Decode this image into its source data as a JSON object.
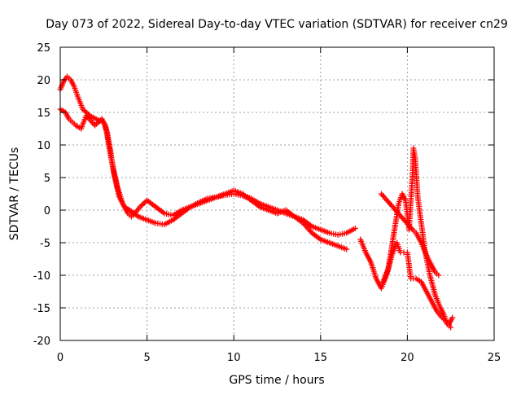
{
  "chart_data": {
    "type": "scatter",
    "title": "Day 073 of 2022, Sidereal Day-to-day VTEC variation (SDTVAR) for receiver cn29",
    "xlabel": "GPS time / hours",
    "ylabel": "SDTVAR / TECUs",
    "xlim": [
      0,
      25
    ],
    "ylim": [
      -20,
      25
    ],
    "xticks": [
      0,
      5,
      10,
      15,
      20,
      25
    ],
    "yticks": [
      -20,
      -15,
      -10,
      -5,
      0,
      5,
      10,
      15,
      20,
      25
    ],
    "grid": true,
    "marker": "+",
    "series": [
      {
        "name": "track-a",
        "color": "#ff0000",
        "x": [
          0.0,
          0.3,
          0.5,
          0.7,
          0.9,
          1.2,
          1.5,
          2.0,
          2.4,
          2.6,
          2.8,
          3.0,
          3.3,
          3.6,
          3.9,
          4.1,
          4.3,
          4.6,
          5.0,
          5.5,
          6.0,
          6.5,
          7.0,
          7.5,
          8.0,
          8.5,
          9.0,
          9.5,
          10.0,
          10.5,
          11.0,
          11.5,
          12.0,
          12.5,
          13.0,
          13.5,
          14.0,
          14.5,
          15.0,
          15.5,
          16.0,
          16.5,
          17.0
        ],
        "y": [
          15.5,
          15.0,
          14.0,
          13.5,
          13.0,
          12.5,
          14.5,
          13.0,
          14.0,
          13.0,
          10.0,
          7.0,
          3.5,
          1.0,
          -0.5,
          -1.0,
          -0.5,
          0.5,
          1.5,
          0.5,
          -0.5,
          -0.8,
          0.0,
          0.5,
          1.2,
          1.8,
          2.0,
          2.3,
          2.5,
          2.2,
          1.8,
          1.0,
          0.5,
          0.0,
          -0.5,
          -1.0,
          -1.5,
          -2.5,
          -3.0,
          -3.5,
          -3.8,
          -3.5,
          -2.8
        ]
      },
      {
        "name": "track-b",
        "color": "#ff0000",
        "x": [
          0.0,
          0.2,
          0.4,
          0.6,
          0.8,
          1.0,
          1.3,
          1.7,
          2.2,
          2.5,
          2.7,
          2.9,
          3.1,
          3.4,
          3.7,
          4.0,
          4.5,
          5.0,
          5.5,
          6.0,
          6.5,
          7.0,
          7.5,
          8.0,
          8.5,
          9.0,
          9.5,
          10.0,
          10.5,
          11.0,
          11.5,
          12.0,
          12.5,
          13.0,
          13.5,
          14.0,
          14.5,
          15.0,
          15.5,
          16.0,
          16.5
        ],
        "y": [
          18.5,
          19.8,
          20.5,
          20.0,
          19.0,
          17.5,
          15.5,
          14.5,
          13.8,
          13.5,
          12.0,
          9.0,
          5.5,
          2.0,
          0.5,
          0.0,
          -1.0,
          -1.5,
          -2.0,
          -2.2,
          -1.5,
          -0.5,
          0.5,
          1.0,
          1.5,
          2.0,
          2.5,
          3.0,
          2.5,
          1.5,
          0.5,
          0.0,
          -0.5,
          0.0,
          -1.0,
          -2.0,
          -3.5,
          -4.5,
          -5.0,
          -5.5,
          -6.0
        ]
      },
      {
        "name": "late-segments",
        "color": "#ff0000",
        "x": [
          17.3,
          17.6,
          17.9,
          18.2,
          18.5,
          18.8,
          19.1,
          19.4,
          19.6,
          19.8,
          20.0,
          20.2,
          20.5,
          20.8,
          21.1,
          21.4,
          21.7,
          22.0,
          22.2,
          22.4,
          22.6
        ],
        "y": [
          -4.5,
          -6.5,
          -8.0,
          -10.5,
          -12.0,
          -10.0,
          -7.0,
          -5.0,
          -6.5,
          -6.5,
          -6.5,
          -10.5,
          -10.5,
          -11.0,
          -12.5,
          -14.0,
          -15.5,
          -16.5,
          -17.0,
          -17.5,
          -16.5
        ]
      },
      {
        "name": "spike-track",
        "color": "#ff0000",
        "x": [
          18.6,
          18.9,
          19.2,
          19.5,
          19.7,
          19.9,
          20.1,
          20.3,
          20.35,
          20.45,
          20.6,
          20.8,
          21.0,
          21.3,
          21.6,
          21.9,
          22.1,
          22.3,
          22.5
        ],
        "y": [
          -11.0,
          -9.0,
          -4.0,
          1.0,
          2.5,
          1.5,
          -3.0,
          5.5,
          9.5,
          8.0,
          2.0,
          -2.0,
          -6.0,
          -10.0,
          -13.0,
          -15.0,
          -16.0,
          -17.5,
          -18.0
        ]
      },
      {
        "name": "side-track",
        "color": "#ff0000",
        "x": [
          18.5,
          20.3,
          20.5,
          20.8,
          21.2,
          21.6,
          21.8
        ],
        "y": [
          2.5,
          -3.0,
          -3.5,
          -5.0,
          -7.5,
          -9.5,
          -10.0
        ]
      }
    ]
  }
}
